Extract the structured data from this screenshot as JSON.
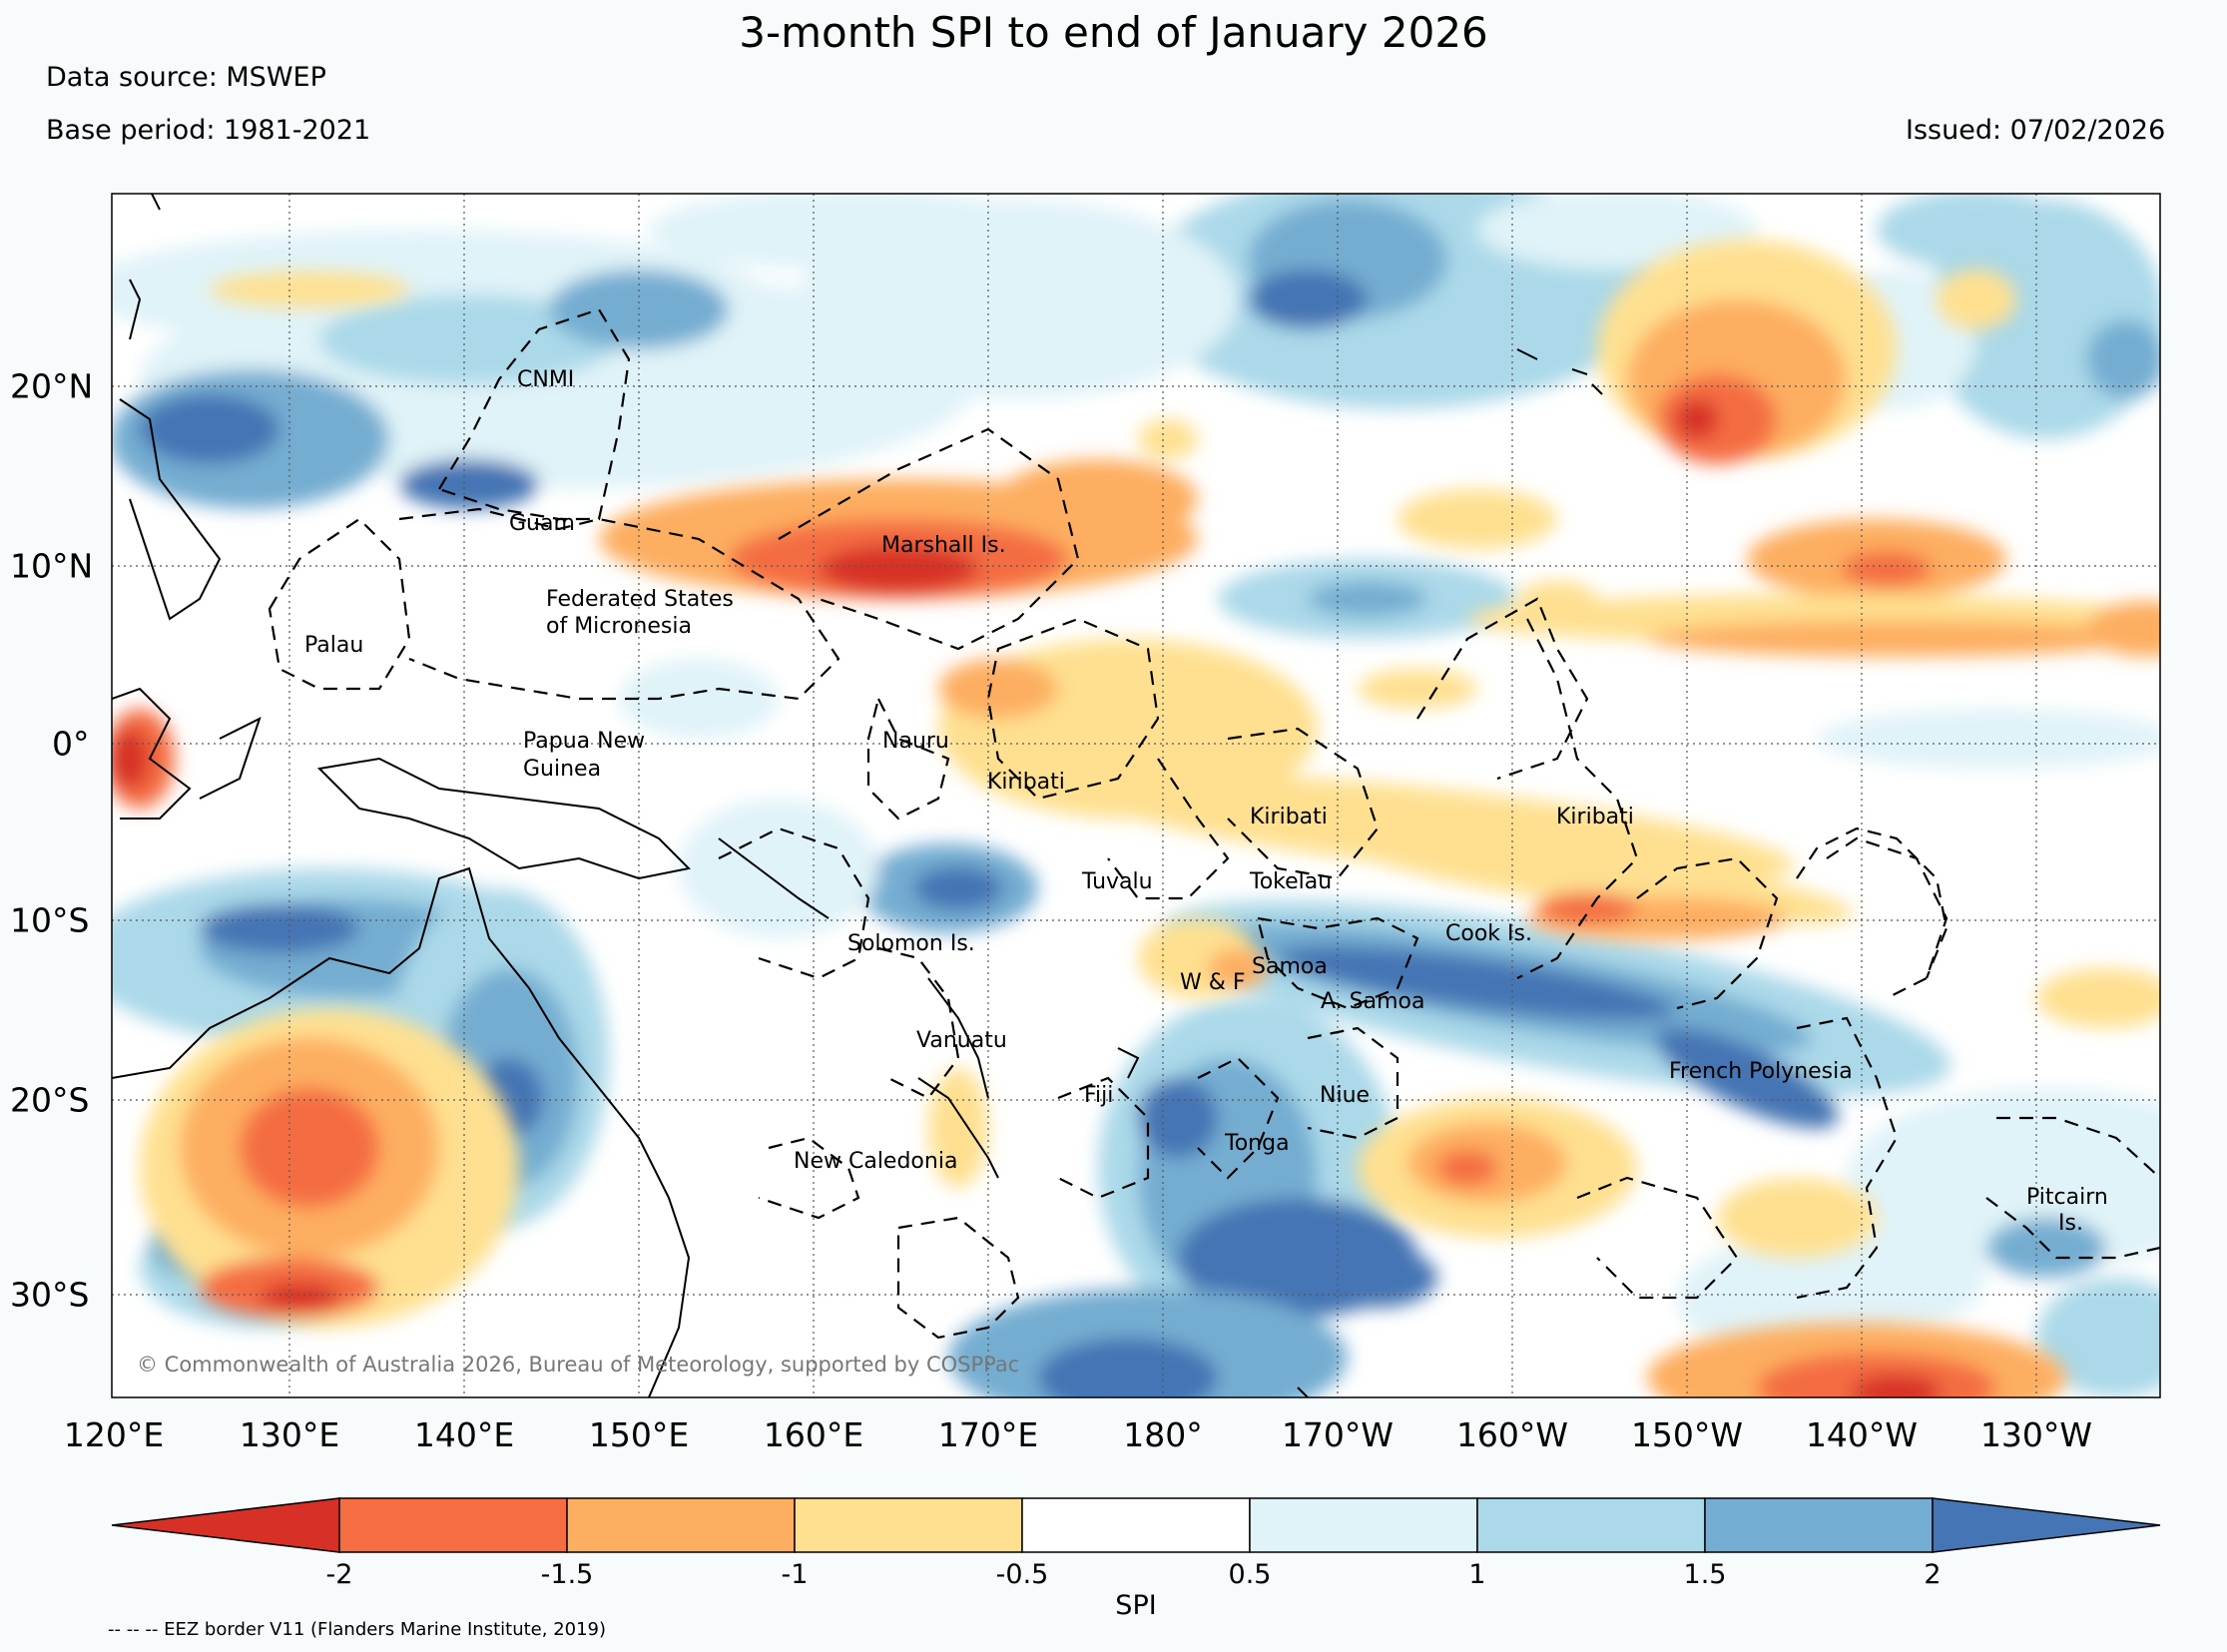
{
  "header": {
    "title": "3-month SPI to end of January 2026",
    "data_source": "Data source: MSWEP",
    "base_period": "Base period: 1981-2021",
    "issued": "Issued: 07/02/2026"
  },
  "map": {
    "lon_labels": [
      "120°E",
      "130°E",
      "140°E",
      "150°E",
      "160°E",
      "170°E",
      "180°",
      "170°W",
      "160°W",
      "150°W",
      "140°W",
      "130°W"
    ],
    "lat_labels": [
      "20°N",
      "10°N",
      "0°",
      "10°S",
      "20°S",
      "30°S"
    ],
    "regions": {
      "cnmi": "CNMI",
      "guam": "Guam",
      "fsm1": "Federated States",
      "fsm2": "of Micronesia",
      "palau": "Palau",
      "marshall": "Marshall Is.",
      "png1": "Papua New",
      "png2": "Guinea",
      "nauru": "Nauru",
      "kiribati_w": "Kiribati",
      "kiribati_c": "Kiribati",
      "kiribati_e": "Kiribati",
      "tuvalu": "Tuvalu",
      "tokelau": "Tokelau",
      "solomon": "Solomon Is.",
      "samoa": "Samoa",
      "wf": "W & F",
      "asamoa": "A. Samoa",
      "cook": "Cook Is.",
      "vanuatu": "Vanuatu",
      "fiji": "Fiji",
      "niue": "Niue",
      "tonga": "Tonga",
      "fpoly": "French Polynesia",
      "newcal": "New Caledonia",
      "pitcairn1": "Pitcairn",
      "pitcairn2": "Is."
    },
    "copyright": "© Commonwealth of Australia 2026, Bureau of Meteorology, supported by COSPPac"
  },
  "colorbar": {
    "title": "SPI",
    "ticks": [
      "-2",
      "-1.5",
      "-1",
      "-0.5",
      "0.5",
      "1",
      "1.5",
      "2"
    ],
    "colors": [
      "#d73027",
      "#f46d43",
      "#fdae61",
      "#fee090",
      "#ffffff",
      "#e0f3f8",
      "#abd9e9",
      "#74add1",
      "#4575b4"
    ]
  },
  "footnote": "-- -- -- EEZ border V11 (Flanders Marine Institute, 2019)"
}
